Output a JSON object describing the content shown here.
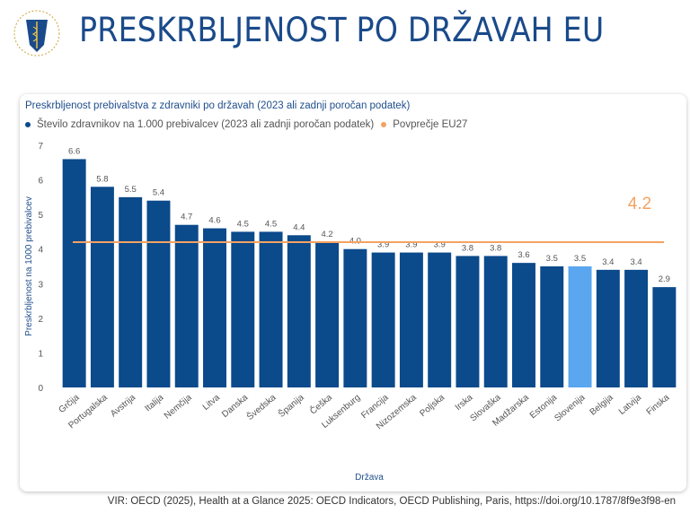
{
  "header": {
    "title": "PRESKRBLJENOST PO DRŽAVAH EU",
    "logo_text": "ZDRAVNIŠKA ZBORNICA SLOVENIJE"
  },
  "source": "VIR: OECD (2025), Health at a Glance 2025: OECD Indicators, OECD Publishing, Paris, https://doi.org/10.1787/8f9e3f98-en",
  "chart_data": {
    "type": "bar",
    "title": "Preskrbljenost prebivalstva z zdravniki po državah (2023 ali zadnji poročan podatek)",
    "xlabel": "Država",
    "ylabel": "Preskrbljenost na 1000 prebivalcev",
    "ylim": [
      0,
      7
    ],
    "yticks": [
      0,
      1,
      2,
      3,
      4,
      5,
      6,
      7
    ],
    "grid": false,
    "legend": "top-left",
    "categories": [
      "Grčija",
      "Portugalska",
      "Avstrija",
      "Italija",
      "Nemčija",
      "Litva",
      "Danska",
      "Švedska",
      "Španija",
      "Češka",
      "Luksenburg",
      "Francija",
      "Nizozemska",
      "Poljska",
      "Irska",
      "Slovaška",
      "Madžarska",
      "Estonija",
      "Slovenija",
      "Belgija",
      "Latvija",
      "Finska"
    ],
    "series": [
      {
        "name": "Število zdravnikov na 1.000 prebivalcev (2023 ali zadnji poročan podatek)",
        "values": [
          6.6,
          5.8,
          5.5,
          5.4,
          4.7,
          4.6,
          4.5,
          4.5,
          4.4,
          4.2,
          4.0,
          3.9,
          3.9,
          3.9,
          3.8,
          3.8,
          3.6,
          3.5,
          3.5,
          3.4,
          3.4,
          2.9
        ],
        "color": "#0b4a8b",
        "highlight": {
          "category": "Slovenija",
          "color": "#5aa6ef"
        }
      }
    ],
    "reference": {
      "name": "Povprečje EU27",
      "value": 4.2,
      "label": "4.2",
      "color": "#f4a261"
    }
  }
}
